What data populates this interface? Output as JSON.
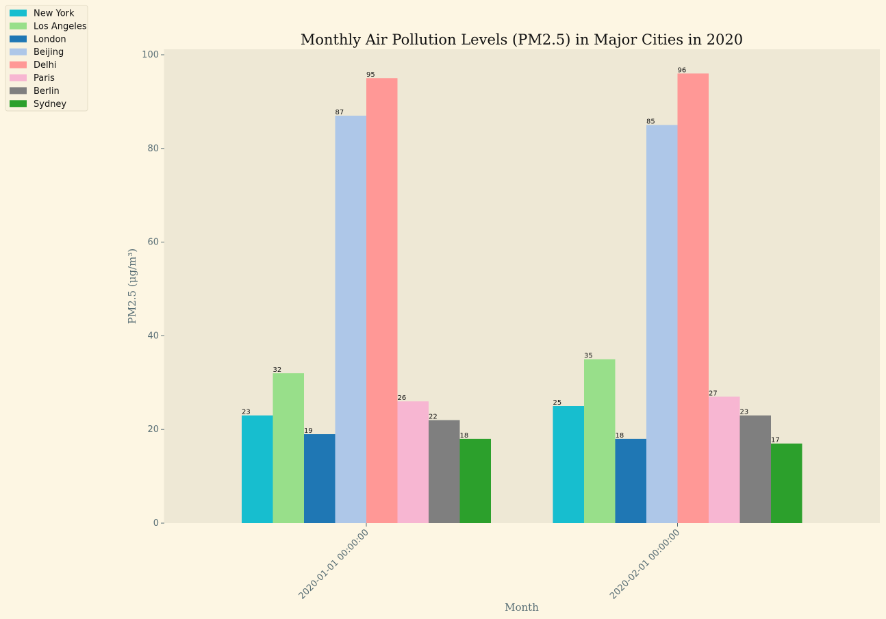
{
  "chart_data": {
    "type": "bar",
    "title": "Monthly Air Pollution Levels (PM2.5) in Major Cities in 2020",
    "xlabel": "Month",
    "ylabel": "PM2.5 (μg/m³)",
    "categories": [
      "2020-01-01 00:00:00",
      "2020-02-01 00:00:00"
    ],
    "ylim": [
      0,
      100
    ],
    "yticks": [
      0,
      20,
      40,
      60,
      80,
      100
    ],
    "grid": false,
    "legend_position": "top-left",
    "plot_background": "#eee8d5",
    "figure_background": "#fdf6e3",
    "series": [
      {
        "name": "New York",
        "color": "#17becf",
        "values": [
          23,
          25
        ]
      },
      {
        "name": "Los Angeles",
        "color": "#98df8a",
        "values": [
          32,
          35
        ]
      },
      {
        "name": "London",
        "color": "#1f77b4",
        "values": [
          19,
          18
        ]
      },
      {
        "name": "Beijing",
        "color": "#aec7e8",
        "values": [
          87,
          85
        ]
      },
      {
        "name": "Delhi",
        "color": "#ff9896",
        "values": [
          95,
          96
        ]
      },
      {
        "name": "Paris",
        "color": "#f7b6d2",
        "values": [
          26,
          27
        ]
      },
      {
        "name": "Berlin",
        "color": "#7f7f7f",
        "values": [
          22,
          23
        ]
      },
      {
        "name": "Sydney",
        "color": "#2ca02c",
        "values": [
          18,
          17
        ]
      }
    ]
  }
}
